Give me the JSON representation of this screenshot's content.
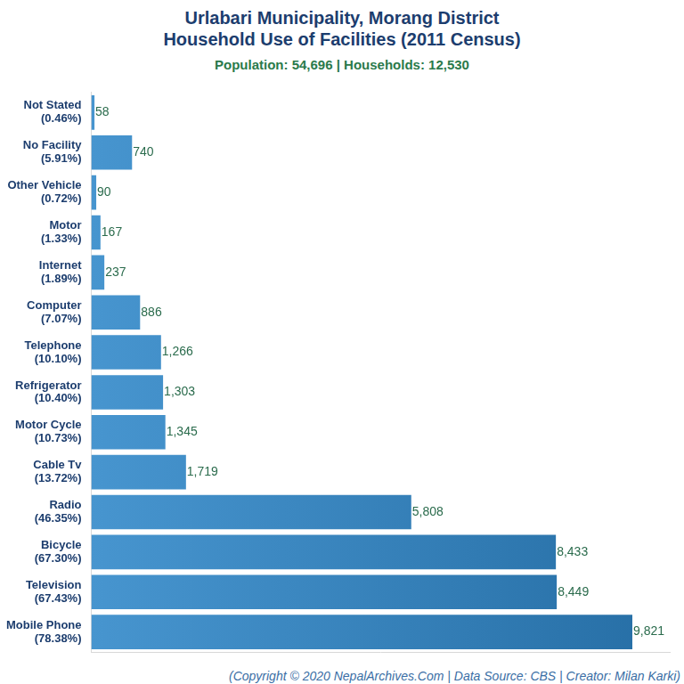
{
  "chart_data": {
    "type": "bar",
    "orientation": "horizontal",
    "title": [
      "Urlabari Municipality, Morang District",
      "Household Use of Facilities (2011 Census)"
    ],
    "subtitle": "Population: 54,696 | Households: 12,530",
    "caption": "(Copyright © 2020 NepalArchives.Com | Data Source: CBS | Creator: Milan Karki)",
    "categories": [
      [
        "Not Stated",
        "(0.46%)"
      ],
      [
        "No Facility",
        "(5.91%)"
      ],
      [
        "Other Vehicle",
        "(0.72%)"
      ],
      [
        "Motor",
        "(1.33%)"
      ],
      [
        "Internet",
        "(1.89%)"
      ],
      [
        "Computer",
        "(7.07%)"
      ],
      [
        "Telephone",
        "(10.10%)"
      ],
      [
        "Refrigerator",
        "(10.40%)"
      ],
      [
        "Motor Cycle",
        "(10.73%)"
      ],
      [
        "Cable Tv",
        "(13.72%)"
      ],
      [
        "Radio",
        "(46.35%)"
      ],
      [
        "Bicycle",
        "(67.30%)"
      ],
      [
        "Television",
        "(67.43%)"
      ],
      [
        "Mobile Phone",
        "(78.38%)"
      ]
    ],
    "values": [
      58,
      740,
      90,
      167,
      237,
      886,
      1266,
      1303,
      1345,
      1719,
      5808,
      8433,
      8449,
      9821
    ],
    "value_labels": [
      "58",
      "740",
      "90",
      "167",
      "237",
      "886",
      "1,266",
      "1,303",
      "1,345",
      "1,719",
      "5,808",
      "8,433",
      "8,449",
      "9,821"
    ],
    "color": "#2e86c9",
    "xlim": [
      0,
      10500
    ],
    "grid": false,
    "data_labels": true,
    "tick_labels": "y"
  }
}
